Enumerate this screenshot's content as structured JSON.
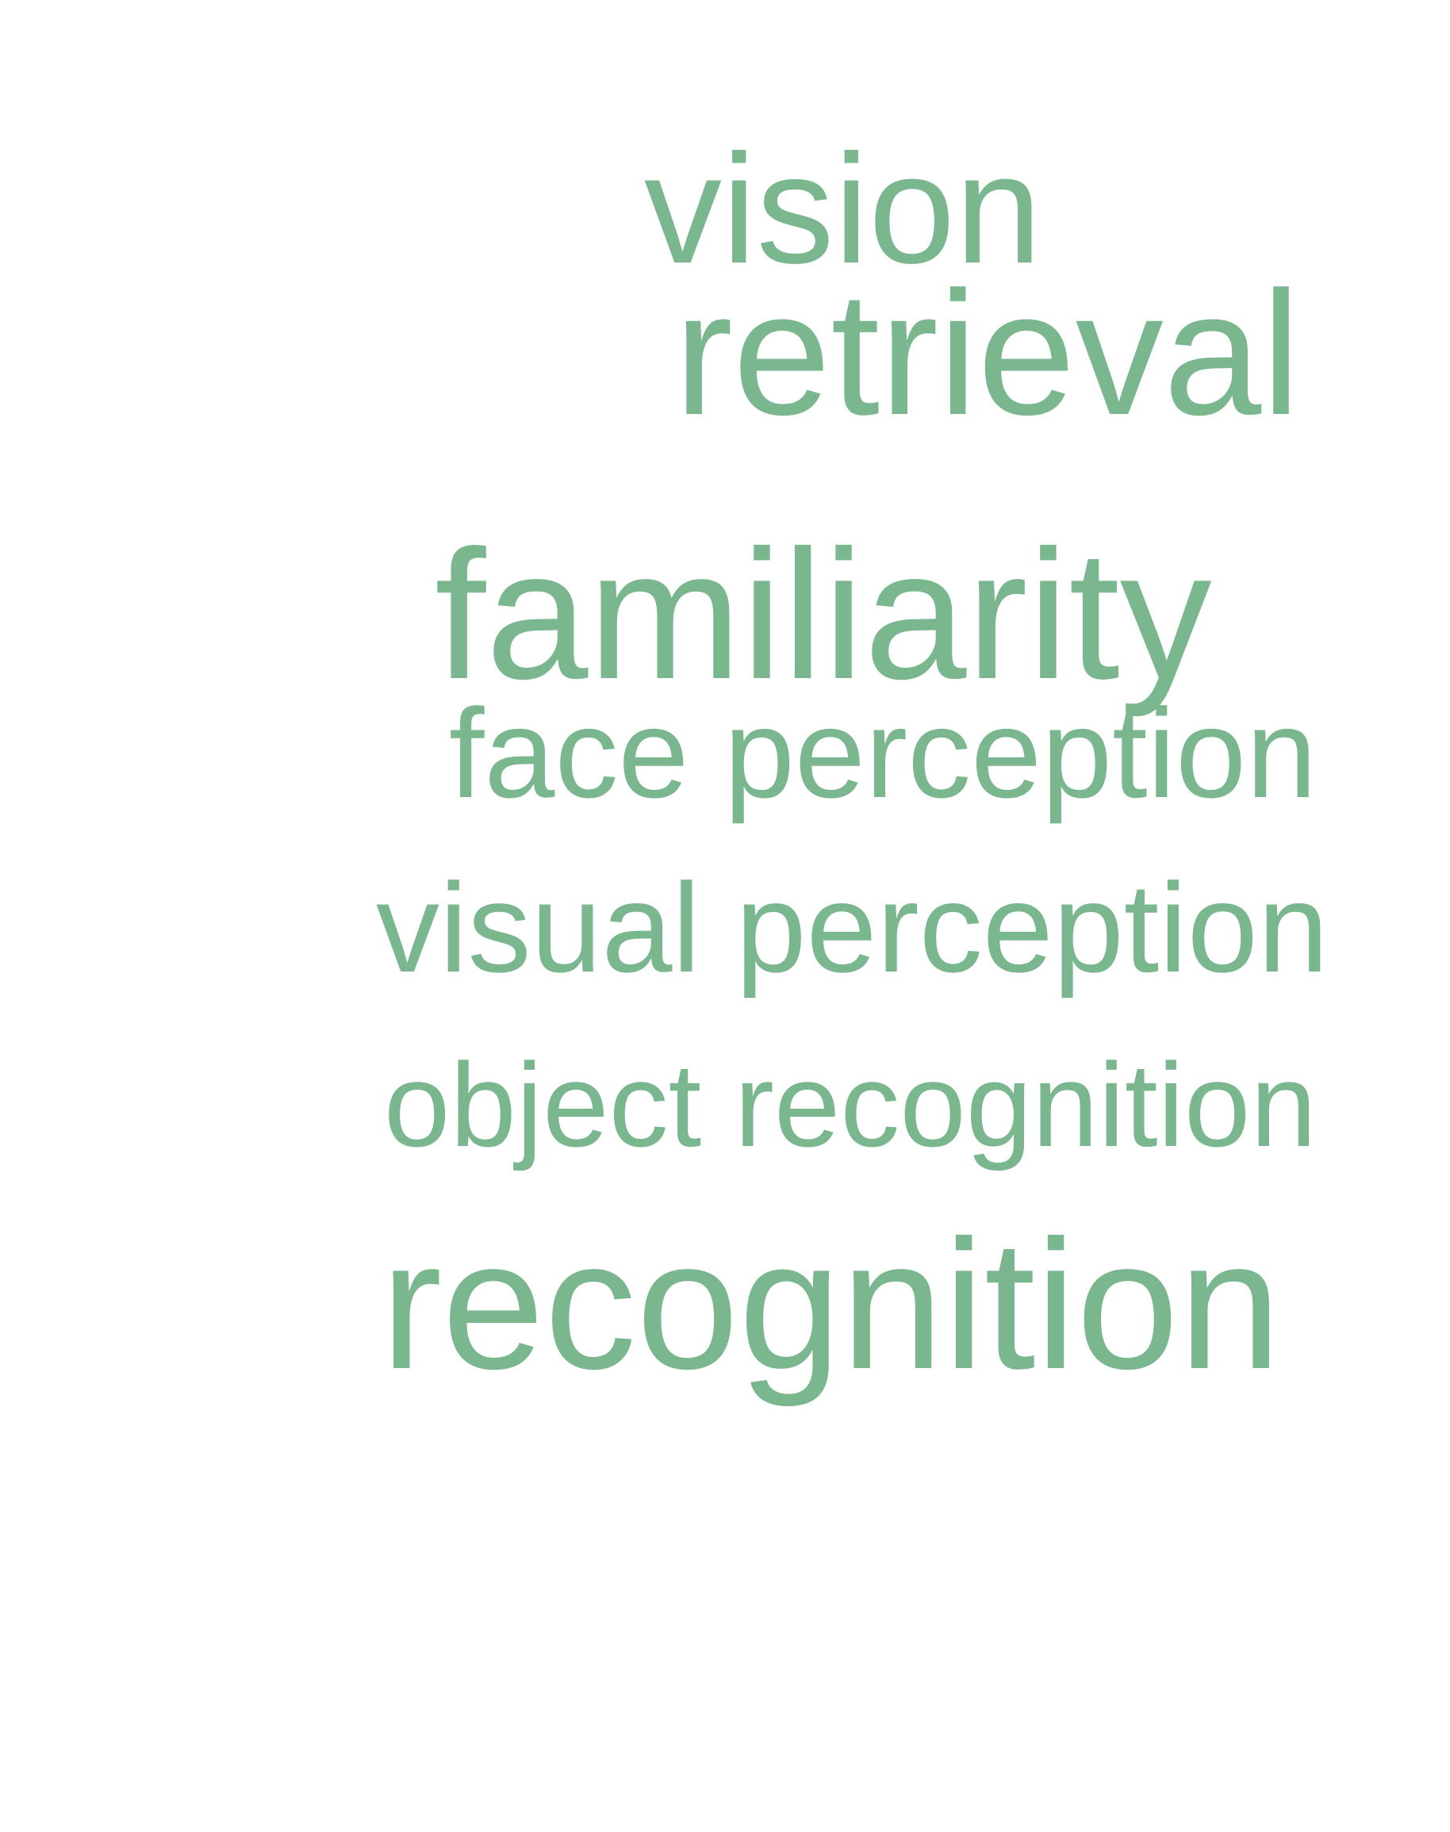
{
  "word_cloud": {
    "color": "#7ab78e",
    "words": [
      {
        "text": "vision"
      },
      {
        "text": "retrieval"
      },
      {
        "text": "familiarity"
      },
      {
        "text": "face perception"
      },
      {
        "text": "visual perception"
      },
      {
        "text": "object recognition"
      },
      {
        "text": "recognition"
      }
    ]
  }
}
